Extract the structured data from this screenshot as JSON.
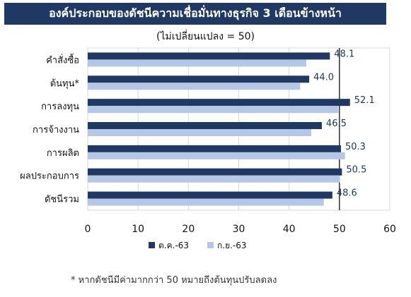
{
  "title": "องค์ประกอบของดัชนีความเชื่อมั่นทางธุรกิจ 3 เดือนข้างหน้า",
  "subtitle": "(ไม่เปลี่ยนแปลง = 50)",
  "footnote": "* หากดัชนีมีค่ามากกว่า 50 หมายถึงต้นทุนปรับลดลง",
  "colors": {
    "title_bg": "#1f3864",
    "series_1": "#1f3864",
    "series_2": "#b4c7e7",
    "label_text": "#1f3864",
    "reference_line": "#000000",
    "grid": "#d9d9d9"
  },
  "chart_data": {
    "type": "bar",
    "orientation": "horizontal",
    "categories": [
      "คำสั่งซื้อ",
      "ต้นทุน*",
      "การลงทุน",
      "การจ้างงาน",
      "การผลิต",
      "ผลประกอบการ",
      "ดัชนีรวม"
    ],
    "series": [
      {
        "name": "ต.ค.-63",
        "values": [
          48.1,
          44.0,
          52.1,
          46.5,
          50.3,
          50.5,
          48.6
        ]
      },
      {
        "name": "ก.ย.-63",
        "values": [
          43.4,
          42.2,
          49.8,
          44.4,
          51.1,
          50.1,
          46.9
        ]
      }
    ],
    "data_labels": [
      "48.1",
      "44.0",
      "52.1",
      "46.5",
      "50.3",
      "50.5",
      "48.6"
    ],
    "xlim": [
      0,
      60
    ],
    "xticks": [
      "0",
      "10",
      "20",
      "30",
      "40",
      "50",
      "60"
    ],
    "reference_value": 50,
    "grid": true,
    "legend_position": "bottom-center"
  }
}
